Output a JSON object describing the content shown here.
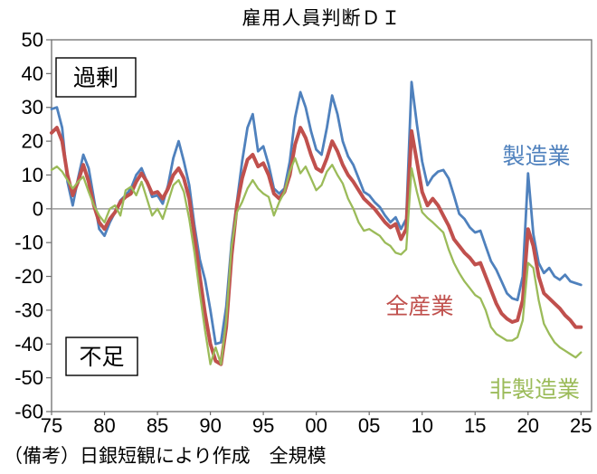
{
  "chart_data": {
    "type": "line",
    "title": "雇用人員判断ＤＩ",
    "caption": "（備考）日銀短観により作成　全規模",
    "x_start": 1975,
    "x_step": 0.5,
    "x_domain": [
      1975,
      2026
    ],
    "ylim": [
      -60,
      50
    ],
    "grid": false,
    "zero_line": 0,
    "legend_position": "inline-labels",
    "y_ticks": [
      50,
      40,
      30,
      20,
      10,
      0,
      -10,
      -20,
      -30,
      -40,
      -50,
      -60
    ],
    "x_ticks": [
      {
        "year": 1975,
        "label": "75"
      },
      {
        "year": 1980,
        "label": "80"
      },
      {
        "year": 1985,
        "label": "85"
      },
      {
        "year": 1990,
        "label": "90"
      },
      {
        "year": 1995,
        "label": "95"
      },
      {
        "year": 2000,
        "label": "00"
      },
      {
        "year": 2005,
        "label": "05"
      },
      {
        "year": 2010,
        "label": "10"
      },
      {
        "year": 2015,
        "label": "15"
      },
      {
        "year": 2020,
        "label": "20"
      },
      {
        "year": 2025,
        "label": "25"
      }
    ],
    "annotations": [
      {
        "id": "excess",
        "text": "過剰"
      },
      {
        "id": "shortage",
        "text": "不足"
      }
    ],
    "frame_color": "#6e6e6e",
    "zero_line_color": "#9a9a9a",
    "series": [
      {
        "id": "manufacturing",
        "name": "製造業",
        "color": "#4F81BD",
        "width": 2.8,
        "values": [
          29.5,
          30,
          24,
          8,
          1,
          9,
          16,
          12,
          3,
          -6,
          -8,
          -4,
          -1,
          2.5,
          4,
          6,
          10,
          12,
          8,
          3.5,
          4,
          1.5,
          7,
          15,
          20,
          14,
          7,
          -5,
          -15,
          -21,
          -30,
          -40,
          -39.5,
          -29,
          -10,
          2,
          14,
          24,
          28,
          17,
          18.5,
          13,
          6,
          4.5,
          6,
          14,
          27,
          34.5,
          30,
          23,
          17.5,
          16,
          24,
          33.5,
          28,
          20,
          15.5,
          13,
          9,
          5,
          4,
          2,
          0.5,
          -2,
          -4,
          -2.5,
          -6,
          -3,
          37.5,
          25,
          14,
          7,
          9.5,
          11,
          11.5,
          9,
          4,
          -1.5,
          -3,
          -5.5,
          -7,
          -6.5,
          -11,
          -15.5,
          -18,
          -21.5,
          -25,
          -26.5,
          -27,
          -20,
          10.5,
          -7.5,
          -16,
          -19,
          -17.5,
          -20,
          -21,
          -19.5,
          -21.5,
          -22,
          -22.5
        ]
      },
      {
        "id": "all-industries",
        "name": "全産業",
        "color": "#C0504D",
        "width": 4,
        "values": [
          22.5,
          24,
          20,
          10,
          4,
          8,
          13,
          8,
          1,
          -4,
          -6,
          -3,
          -1,
          2,
          3.5,
          4.5,
          8,
          10.5,
          8,
          4.5,
          5,
          3,
          6,
          10,
          12,
          9,
          3,
          -8,
          -20,
          -31,
          -40,
          -45,
          -46,
          -35,
          -14,
          1,
          9,
          14.5,
          16,
          12.5,
          13.5,
          10,
          4.5,
          3,
          5,
          10,
          19,
          24,
          21,
          16,
          12,
          11,
          15,
          20,
          17,
          13,
          10,
          8,
          5.5,
          3,
          1.5,
          0,
          -2,
          -4,
          -5.5,
          -4.5,
          -9,
          -6,
          23,
          14,
          5,
          1,
          3,
          1,
          -2,
          -5,
          -9,
          -11,
          -13,
          -14.5,
          -16.5,
          -16,
          -20,
          -24,
          -28,
          -31,
          -32.5,
          -33.5,
          -33,
          -27,
          -6,
          -11,
          -20,
          -25,
          -26.5,
          -28,
          -29.5,
          -31.5,
          -33,
          -35,
          -35
        ]
      },
      {
        "id": "non-manufacturing",
        "name": "非製造業",
        "color": "#9BBB59",
        "width": 2.3,
        "values": [
          11.5,
          12.5,
          11,
          8.5,
          6,
          8,
          9.5,
          5,
          1,
          -2,
          -4,
          0,
          1,
          -2,
          5.5,
          6.5,
          4,
          8,
          3,
          -2,
          0,
          -3,
          2,
          7,
          8.5,
          5,
          -3,
          -13,
          -25,
          -36,
          -46,
          -41,
          -46,
          -33,
          -11,
          -1,
          2,
          6,
          8.5,
          6,
          4.5,
          3.5,
          -2,
          2,
          5,
          11,
          15,
          10.5,
          12.5,
          9,
          5.5,
          7,
          11,
          13,
          10,
          7.5,
          3,
          0,
          -4,
          -6.5,
          -6,
          -7,
          -8,
          -10,
          -11,
          -13,
          -13.5,
          -12,
          12,
          5,
          -1,
          -2.7,
          -4,
          -5.5,
          -7,
          -12,
          -16,
          -19,
          -21.5,
          -23.5,
          -25.5,
          -26.5,
          -30,
          -35,
          -37,
          -38,
          -39,
          -39,
          -38,
          -33,
          -16,
          -17.5,
          -27,
          -34,
          -37,
          -39.5,
          -41,
          -42,
          -43,
          -44,
          -42.5
        ]
      }
    ]
  }
}
